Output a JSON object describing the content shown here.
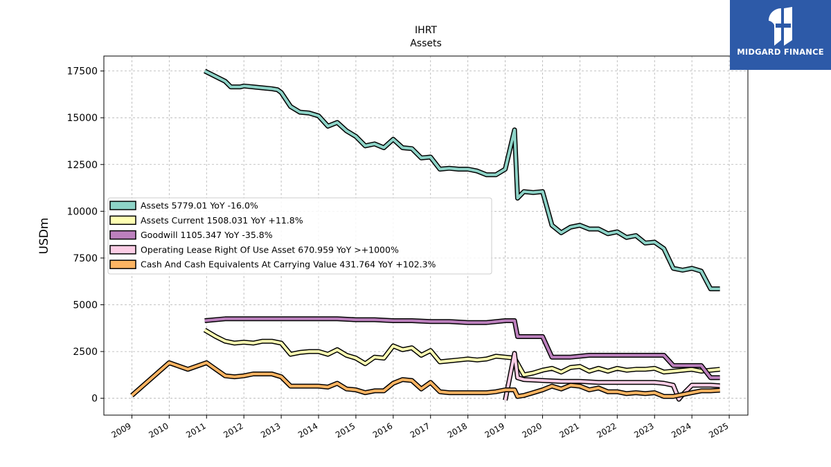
{
  "brand": {
    "logo_text": "MIDGARD FINANCE",
    "logo_background": "#2d5aa8",
    "logo_color": "#ffffff"
  },
  "chart_data": {
    "type": "line",
    "title": "IHRT",
    "subtitle": "Assets",
    "ylabel": "USDm",
    "xlabel": "",
    "ylim": [
      -900,
      18300
    ],
    "xlim": [
      2008.25,
      2025.5
    ],
    "yticks": [
      0,
      2500,
      5000,
      7500,
      10000,
      12500,
      15000,
      17500
    ],
    "xticks": [
      2009,
      2010,
      2011,
      2012,
      2013,
      2014,
      2015,
      2016,
      2017,
      2018,
      2019,
      2020,
      2021,
      2022,
      2023,
      2024,
      2025
    ],
    "grid": true,
    "legend_position": "center-left",
    "series": [
      {
        "name": "Assets",
        "legend_label": "Assets  5779.01 YoY -16.0%",
        "color": "#8dd3c7",
        "points": [
          [
            2010.95,
            17500
          ],
          [
            2011.25,
            17200
          ],
          [
            2011.5,
            16950
          ],
          [
            2011.65,
            16650
          ],
          [
            2011.9,
            16650
          ],
          [
            2012.0,
            16700
          ],
          [
            2012.25,
            16650
          ],
          [
            2012.5,
            16600
          ],
          [
            2012.75,
            16550
          ],
          [
            2012.9,
            16500
          ],
          [
            2013.0,
            16350
          ],
          [
            2013.25,
            15600
          ],
          [
            2013.5,
            15300
          ],
          [
            2013.75,
            15250
          ],
          [
            2014.0,
            15100
          ],
          [
            2014.25,
            14550
          ],
          [
            2014.5,
            14750
          ],
          [
            2014.75,
            14300
          ],
          [
            2015.0,
            14000
          ],
          [
            2015.25,
            13500
          ],
          [
            2015.5,
            13600
          ],
          [
            2015.75,
            13400
          ],
          [
            2016.0,
            13850
          ],
          [
            2016.25,
            13400
          ],
          [
            2016.5,
            13350
          ],
          [
            2016.75,
            12850
          ],
          [
            2017.0,
            12900
          ],
          [
            2017.25,
            12250
          ],
          [
            2017.5,
            12300
          ],
          [
            2017.75,
            12250
          ],
          [
            2018.0,
            12250
          ],
          [
            2018.25,
            12150
          ],
          [
            2018.5,
            11950
          ],
          [
            2018.75,
            11950
          ],
          [
            2019.0,
            12250
          ],
          [
            2019.25,
            14350
          ],
          [
            2019.33,
            10700
          ],
          [
            2019.5,
            11050
          ],
          [
            2019.75,
            11000
          ],
          [
            2020.0,
            11050
          ],
          [
            2020.25,
            9250
          ],
          [
            2020.5,
            8850
          ],
          [
            2020.75,
            9150
          ],
          [
            2021.0,
            9250
          ],
          [
            2021.25,
            9050
          ],
          [
            2021.5,
            9050
          ],
          [
            2021.75,
            8800
          ],
          [
            2022.0,
            8900
          ],
          [
            2022.25,
            8600
          ],
          [
            2022.5,
            8700
          ],
          [
            2022.75,
            8300
          ],
          [
            2023.0,
            8350
          ],
          [
            2023.25,
            8000
          ],
          [
            2023.5,
            6950
          ],
          [
            2023.75,
            6850
          ],
          [
            2024.0,
            6950
          ],
          [
            2024.25,
            6800
          ],
          [
            2024.5,
            5850
          ],
          [
            2024.75,
            5850
          ]
        ]
      },
      {
        "name": "Assets Current",
        "legend_label": "Assets Current  1508.031 YoY +11.8%",
        "color": "#ffffb3",
        "points": [
          [
            2010.95,
            3650
          ],
          [
            2011.25,
            3300
          ],
          [
            2011.5,
            3050
          ],
          [
            2011.75,
            2950
          ],
          [
            2012.0,
            3000
          ],
          [
            2012.25,
            2950
          ],
          [
            2012.5,
            3050
          ],
          [
            2012.75,
            3050
          ],
          [
            2013.0,
            2950
          ],
          [
            2013.25,
            2350
          ],
          [
            2013.5,
            2450
          ],
          [
            2013.75,
            2500
          ],
          [
            2014.0,
            2500
          ],
          [
            2014.25,
            2350
          ],
          [
            2014.5,
            2600
          ],
          [
            2014.75,
            2300
          ],
          [
            2015.0,
            2150
          ],
          [
            2015.25,
            1850
          ],
          [
            2015.5,
            2200
          ],
          [
            2015.75,
            2150
          ],
          [
            2016.0,
            2800
          ],
          [
            2016.25,
            2600
          ],
          [
            2016.5,
            2700
          ],
          [
            2016.75,
            2300
          ],
          [
            2017.0,
            2550
          ],
          [
            2017.25,
            1950
          ],
          [
            2017.5,
            2000
          ],
          [
            2017.75,
            2050
          ],
          [
            2018.0,
            2100
          ],
          [
            2018.25,
            2050
          ],
          [
            2018.5,
            2100
          ],
          [
            2018.75,
            2250
          ],
          [
            2019.0,
            2200
          ],
          [
            2019.25,
            2150
          ],
          [
            2019.5,
            1250
          ],
          [
            2019.75,
            1350
          ],
          [
            2020.0,
            1500
          ],
          [
            2020.25,
            1600
          ],
          [
            2020.5,
            1400
          ],
          [
            2020.75,
            1650
          ],
          [
            2021.0,
            1700
          ],
          [
            2021.25,
            1450
          ],
          [
            2021.5,
            1600
          ],
          [
            2021.75,
            1450
          ],
          [
            2022.0,
            1600
          ],
          [
            2022.25,
            1500
          ],
          [
            2022.5,
            1550
          ],
          [
            2022.75,
            1550
          ],
          [
            2023.0,
            1600
          ],
          [
            2023.25,
            1400
          ],
          [
            2023.5,
            1450
          ],
          [
            2023.75,
            1500
          ],
          [
            2024.0,
            1550
          ],
          [
            2024.25,
            1450
          ],
          [
            2024.5,
            1500
          ],
          [
            2024.75,
            1550
          ]
        ]
      },
      {
        "name": "Goodwill",
        "legend_label": "Goodwill  1105.347 YoY -35.8%",
        "color": "#bc80bd",
        "points": [
          [
            2010.95,
            4150
          ],
          [
            2011.5,
            4250
          ],
          [
            2012.0,
            4250
          ],
          [
            2012.5,
            4250
          ],
          [
            2013.0,
            4250
          ],
          [
            2013.5,
            4250
          ],
          [
            2014.0,
            4250
          ],
          [
            2014.5,
            4250
          ],
          [
            2015.0,
            4200
          ],
          [
            2015.5,
            4200
          ],
          [
            2016.0,
            4150
          ],
          [
            2016.5,
            4150
          ],
          [
            2017.0,
            4100
          ],
          [
            2017.5,
            4100
          ],
          [
            2018.0,
            4050
          ],
          [
            2018.5,
            4050
          ],
          [
            2019.0,
            4150
          ],
          [
            2019.25,
            4150
          ],
          [
            2019.33,
            3300
          ],
          [
            2019.5,
            3300
          ],
          [
            2020.0,
            3300
          ],
          [
            2020.25,
            2200
          ],
          [
            2020.75,
            2200
          ],
          [
            2021.0,
            2250
          ],
          [
            2021.25,
            2300
          ],
          [
            2021.5,
            2300
          ],
          [
            2022.0,
            2300
          ],
          [
            2023.0,
            2300
          ],
          [
            2023.25,
            2300
          ],
          [
            2023.5,
            1750
          ],
          [
            2024.25,
            1750
          ],
          [
            2024.5,
            1100
          ],
          [
            2024.75,
            1100
          ]
        ]
      },
      {
        "name": "Operating Lease Right Of Use Asset",
        "legend_label": "Operating Lease Right Of Use Asset  670.959 YoY >+1000%",
        "color": "#fccde5",
        "points": [
          [
            2019.0,
            -100
          ],
          [
            2019.25,
            2400
          ],
          [
            2019.33,
            1100
          ],
          [
            2019.5,
            1000
          ],
          [
            2020.0,
            950
          ],
          [
            2020.5,
            900
          ],
          [
            2021.0,
            900
          ],
          [
            2021.5,
            850
          ],
          [
            2022.0,
            850
          ],
          [
            2022.5,
            850
          ],
          [
            2023.0,
            850
          ],
          [
            2023.25,
            800
          ],
          [
            2023.5,
            700
          ],
          [
            2023.65,
            -50
          ],
          [
            2023.75,
            200
          ],
          [
            2024.0,
            700
          ],
          [
            2024.5,
            700
          ],
          [
            2024.75,
            670
          ]
        ]
      },
      {
        "name": "Cash And Cash Equivalents At Carrying Value",
        "legend_label": "Cash And Cash Equivalents At Carrying Value  431.764 YoY +102.3%",
        "color": "#fdb462",
        "points": [
          [
            2009.0,
            150
          ],
          [
            2010.0,
            1900
          ],
          [
            2010.5,
            1550
          ],
          [
            2011.0,
            1900
          ],
          [
            2011.25,
            1550
          ],
          [
            2011.5,
            1200
          ],
          [
            2011.75,
            1150
          ],
          [
            2012.0,
            1200
          ],
          [
            2012.25,
            1300
          ],
          [
            2012.5,
            1300
          ],
          [
            2012.75,
            1300
          ],
          [
            2013.0,
            1150
          ],
          [
            2013.25,
            650
          ],
          [
            2013.5,
            650
          ],
          [
            2013.75,
            650
          ],
          [
            2014.0,
            650
          ],
          [
            2014.25,
            600
          ],
          [
            2014.5,
            800
          ],
          [
            2014.75,
            500
          ],
          [
            2015.0,
            450
          ],
          [
            2015.25,
            300
          ],
          [
            2015.5,
            400
          ],
          [
            2015.75,
            400
          ],
          [
            2016.0,
            800
          ],
          [
            2016.25,
            1000
          ],
          [
            2016.5,
            950
          ],
          [
            2016.75,
            500
          ],
          [
            2017.0,
            850
          ],
          [
            2017.25,
            350
          ],
          [
            2017.5,
            300
          ],
          [
            2017.75,
            300
          ],
          [
            2018.0,
            300
          ],
          [
            2018.25,
            300
          ],
          [
            2018.5,
            300
          ],
          [
            2018.75,
            350
          ],
          [
            2019.0,
            450
          ],
          [
            2019.25,
            450
          ],
          [
            2019.33,
            100
          ],
          [
            2019.5,
            150
          ],
          [
            2019.75,
            300
          ],
          [
            2020.0,
            450
          ],
          [
            2020.25,
            650
          ],
          [
            2020.5,
            500
          ],
          [
            2020.75,
            700
          ],
          [
            2021.0,
            650
          ],
          [
            2021.25,
            450
          ],
          [
            2021.5,
            550
          ],
          [
            2021.75,
            350
          ],
          [
            2022.0,
            350
          ],
          [
            2022.25,
            250
          ],
          [
            2022.5,
            300
          ],
          [
            2022.75,
            250
          ],
          [
            2023.0,
            300
          ],
          [
            2023.25,
            100
          ],
          [
            2023.5,
            100
          ],
          [
            2023.75,
            200
          ],
          [
            2024.0,
            300
          ],
          [
            2024.25,
            400
          ],
          [
            2024.5,
            400
          ],
          [
            2024.75,
            430
          ]
        ]
      }
    ]
  }
}
